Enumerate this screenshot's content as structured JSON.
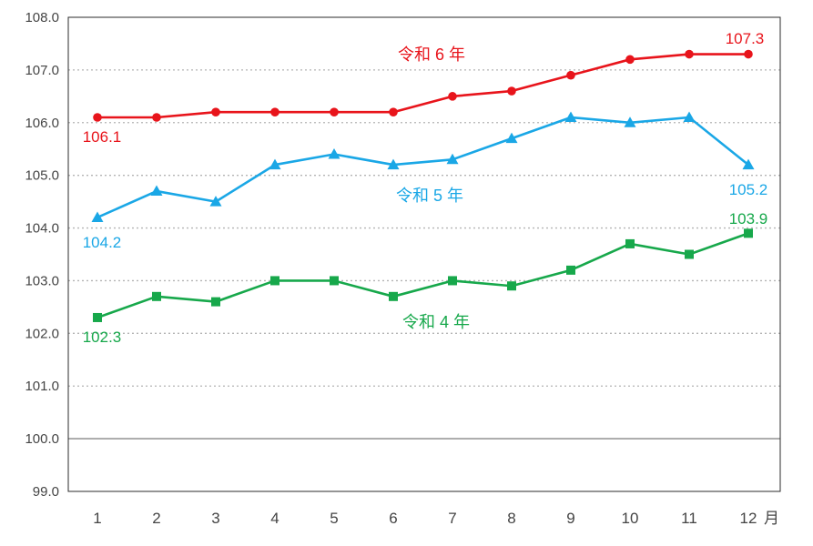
{
  "chart_data": {
    "type": "line",
    "categories": [
      "1",
      "2",
      "3",
      "4",
      "5",
      "6",
      "7",
      "8",
      "9",
      "10",
      "11",
      "12"
    ],
    "x_unit": "月",
    "ylim": [
      99.0,
      108.0
    ],
    "yticks": [
      "99.0",
      "100.0",
      "101.0",
      "102.0",
      "103.0",
      "104.0",
      "105.0",
      "106.0",
      "107.0",
      "108.0"
    ],
    "grid": "horizontal dotted",
    "baseline": 100.0,
    "series": [
      {
        "name": "令和 6 年",
        "color": "#e8141b",
        "marker": "circle",
        "values": [
          106.1,
          106.1,
          106.2,
          106.2,
          106.2,
          106.2,
          106.5,
          106.6,
          106.9,
          107.2,
          107.3,
          107.3
        ],
        "start_label": "106.1",
        "end_label": "107.3"
      },
      {
        "name": "令和 5 年",
        "color": "#1aa7e6",
        "marker": "triangle",
        "values": [
          104.2,
          104.7,
          104.5,
          105.2,
          105.4,
          105.2,
          105.3,
          105.7,
          106.1,
          106.0,
          106.1,
          105.2
        ],
        "start_label": "104.2",
        "end_label": "105.2"
      },
      {
        "name": "令和 4 年",
        "color": "#17a84b",
        "marker": "square",
        "values": [
          102.3,
          102.7,
          102.6,
          103.0,
          103.0,
          102.7,
          103.0,
          102.9,
          103.2,
          103.7,
          103.5,
          103.9
        ],
        "start_label": "102.3",
        "end_label": "103.9"
      }
    ]
  }
}
